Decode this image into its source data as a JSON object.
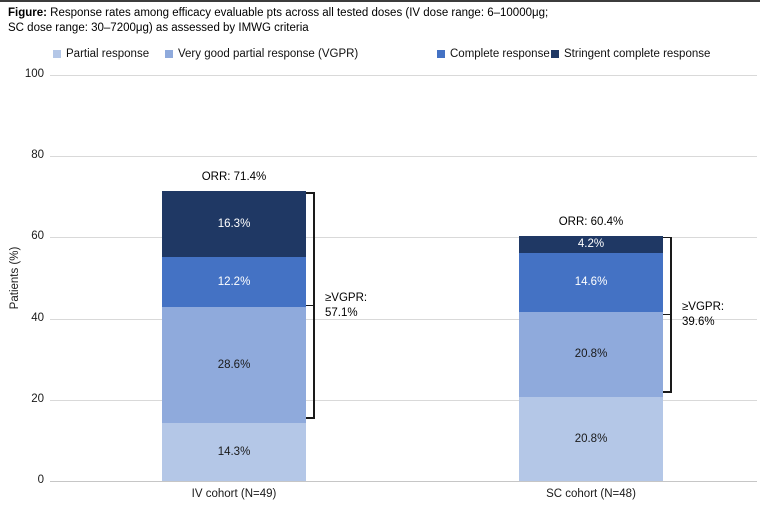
{
  "title": {
    "prefix": "Figure:",
    "line1": " Response rates among efficacy evaluable pts across all tested doses (IV dose range: 6–10000μg;",
    "line2": "SC dose range: 30–7200μg) as assessed by IMWG criteria"
  },
  "colors": {
    "partial_response": "#b4c7e7",
    "vgpr": "#8faadc",
    "complete_response": "#4472c4",
    "stringent_complete_response": "#1f3864",
    "gridline": "#d9d9d9",
    "axis_line": "#c6c6c6",
    "dark_label": "#1a1a1a",
    "light_label": "#ffffff"
  },
  "chart_data": {
    "type": "bar",
    "stacked": true,
    "ylabel": "Patients (%)",
    "ylim": [
      0,
      100
    ],
    "yticks": [
      0,
      20,
      40,
      60,
      80,
      100
    ],
    "grid": true,
    "legend_position": "top",
    "categories": [
      "IV cohort (N=49)",
      "SC cohort (N=48)"
    ],
    "series": [
      {
        "name": "Partial response",
        "color": "#b4c7e7",
        "label_color": "#1a1a1a",
        "values": [
          14.3,
          20.8
        ],
        "labels": [
          "14.3%",
          "20.8%"
        ]
      },
      {
        "name": "Very good partial response (VGPR)",
        "color": "#8faadc",
        "label_color": "#1a1a1a",
        "values": [
          28.6,
          20.8
        ],
        "labels": [
          "28.6%",
          "20.8%"
        ]
      },
      {
        "name": "Complete response",
        "color": "#4472c4",
        "label_color": "#ffffff",
        "values": [
          12.2,
          14.6
        ],
        "labels": [
          "12.2%",
          "14.6%"
        ]
      },
      {
        "name": "Stringent complete response",
        "color": "#1f3864",
        "label_color": "#ffffff",
        "values": [
          16.3,
          4.2
        ],
        "labels": [
          "16.3%",
          "4.2%"
        ]
      }
    ],
    "annotations": {
      "orr_labels": [
        "ORR: 71.4%",
        "ORR: 60.4%"
      ],
      "vgpr_brackets": [
        {
          "line1": "≥VGPR:",
          "line2": "57.1%"
        },
        {
          "line1": "≥VGPR:",
          "line2": "39.6%"
        }
      ]
    }
  }
}
